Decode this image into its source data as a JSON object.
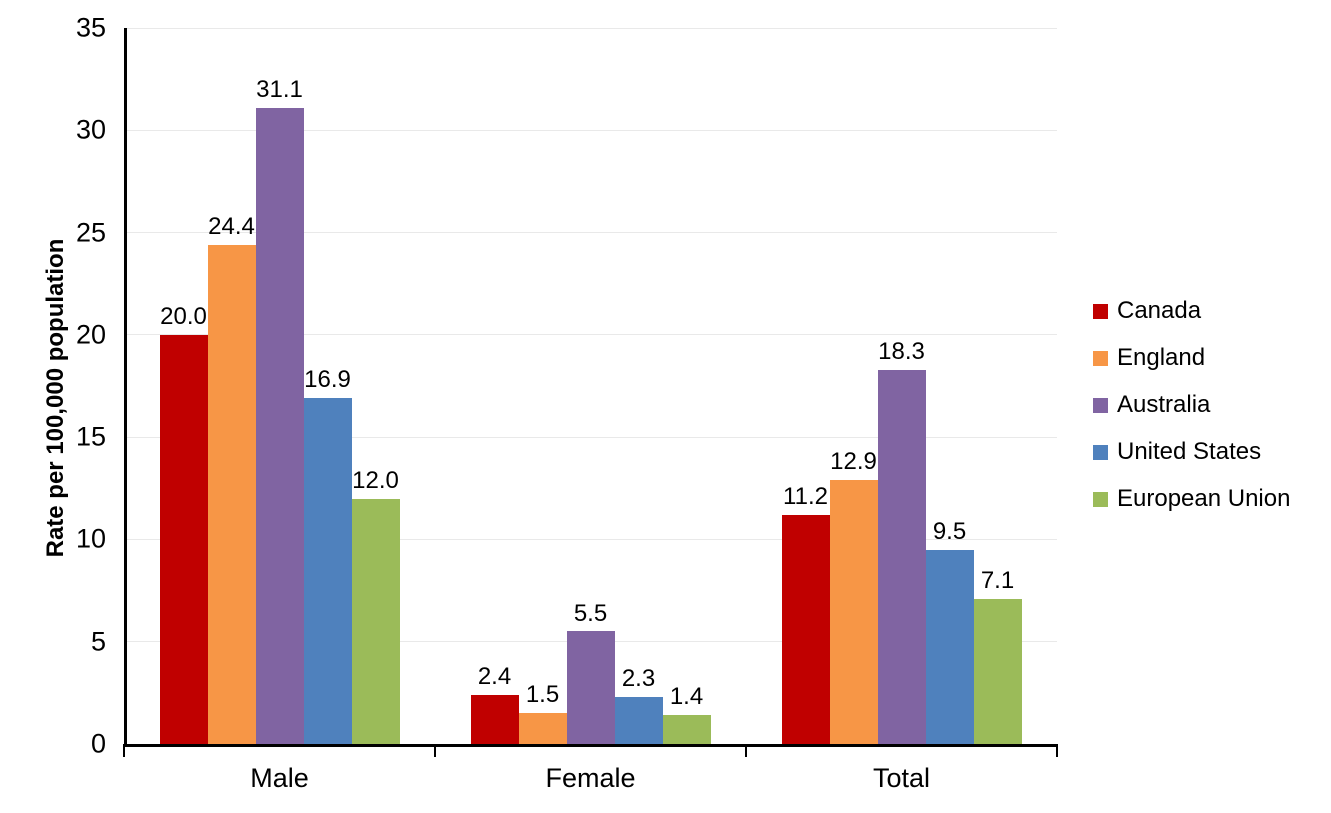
{
  "chart_data": {
    "type": "bar",
    "title": "",
    "xlabel": "",
    "ylabel": "Rate per 100,000 population",
    "categories": [
      "Male",
      "Female",
      "Total"
    ],
    "series": [
      {
        "name": "Canada",
        "color": "#C00000",
        "values": [
          20.0,
          2.4,
          11.2
        ],
        "labels": [
          "20.0",
          "2.4",
          "11.2"
        ]
      },
      {
        "name": "England",
        "color": "#F79646",
        "values": [
          24.4,
          1.5,
          12.9
        ],
        "labels": [
          "24.4",
          "1.5",
          "12.9"
        ]
      },
      {
        "name": "Australia",
        "color": "#8064A2",
        "values": [
          31.1,
          5.5,
          18.3
        ],
        "labels": [
          "31.1",
          "5.5",
          "18.3"
        ]
      },
      {
        "name": "United States",
        "color": "#4F81BD",
        "values": [
          16.9,
          2.3,
          9.5
        ],
        "labels": [
          "16.9",
          "2.3",
          "9.5"
        ]
      },
      {
        "name": "European Union",
        "color": "#9BBB59",
        "values": [
          12.0,
          1.4,
          7.1
        ],
        "labels": [
          "12.0",
          "1.4",
          "7.1"
        ]
      }
    ],
    "ylim": [
      0,
      35
    ],
    "ytick_step": 5,
    "ytick_labels": [
      "0",
      "5",
      "10",
      "15",
      "20",
      "25",
      "30",
      "35"
    ],
    "grid": true,
    "legend_position": "right",
    "colors": {
      "axis": "#000000",
      "gridline": "#e9e9e9",
      "background": "#ffffff",
      "text": "#000000"
    }
  }
}
